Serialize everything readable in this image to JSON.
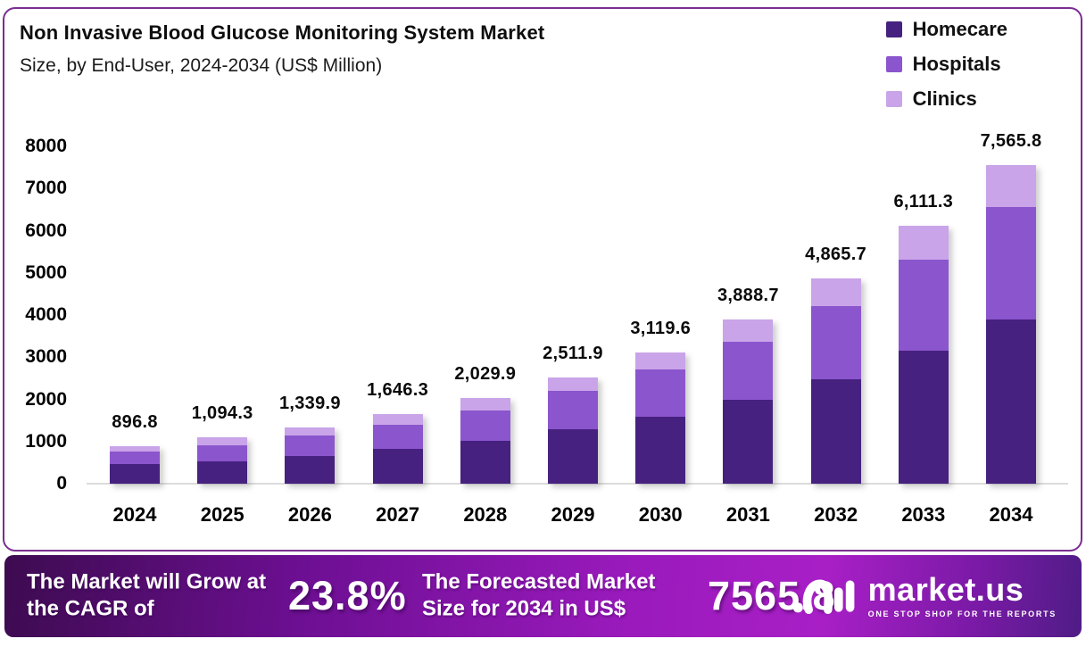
{
  "header": {
    "title": "Non Invasive Blood Glucose Monitoring System Market",
    "subtitle": "Size, by End-User, 2024-2034 (US$ Million)"
  },
  "legend": [
    {
      "label": "Homecare",
      "color": "#46217f"
    },
    {
      "label": "Hospitals",
      "color": "#8b55cd"
    },
    {
      "label": "Clinics",
      "color": "#c9a4e9"
    }
  ],
  "chart_data": {
    "type": "bar",
    "stacked": true,
    "title": "Non Invasive Blood Glucose Monitoring System Market Size, by End-User, 2024-2034 (US$ Million)",
    "categories": [
      "2024",
      "2025",
      "2026",
      "2027",
      "2028",
      "2029",
      "2030",
      "2031",
      "2032",
      "2033",
      "2034"
    ],
    "series": [
      {
        "name": "Homecare",
        "color": "#46217f",
        "values": [
          465.0,
          530.0,
          660.0,
          820.0,
          1025.0,
          1285.0,
          1595.0,
          1990.0,
          2480.0,
          3150.0,
          3900.0
        ]
      },
      {
        "name": "Hospitals",
        "color": "#8b55cd",
        "values": [
          295.0,
          380.0,
          480.0,
          580.0,
          705.0,
          910.0,
          1115.0,
          1370.0,
          1730.0,
          2155.0,
          2670.0
        ]
      },
      {
        "name": "Clinics",
        "color": "#c9a4e9",
        "values": [
          136.8,
          184.3,
          199.9,
          246.3,
          299.9,
          316.9,
          409.6,
          528.7,
          655.7,
          806.3,
          995.8
        ]
      }
    ],
    "totals": [
      896.8,
      1094.3,
      1339.9,
      1646.3,
      2029.9,
      2511.9,
      3119.6,
      3888.7,
      4865.7,
      6111.3,
      7565.8
    ],
    "total_labels": [
      "896.8",
      "1,094.3",
      "1,339.9",
      "1,646.3",
      "2,029.9",
      "2,511.9",
      "3,119.6",
      "3,888.7",
      "4,865.7",
      "6,111.3",
      "7,565.8"
    ],
    "xlabel": "",
    "ylabel": "",
    "ylim": [
      0,
      8000
    ],
    "yticks": [
      "0",
      "1000",
      "2000",
      "3000",
      "4000",
      "5000",
      "6000",
      "7000",
      "8000"
    ],
    "grid": false,
    "legend_position": "top-right"
  },
  "footer": {
    "cagr_text": "The Market will Grow at the CAGR of",
    "cagr_value": "23.8%",
    "forecast_text": "The Forecasted Market Size for 2034 in US$",
    "forecast_value": "7565.8",
    "brand": {
      "name": "market.us",
      "tagline": "ONE STOP SHOP FOR THE REPORTS"
    }
  },
  "colors": {
    "card_border": "#7b2d92",
    "banner_start": "#3d0b50",
    "banner_mid": "#a81fc6",
    "banner_end": "#4f1c86",
    "baseline": "#dcdcdc",
    "text": "#0d0d0d"
  }
}
